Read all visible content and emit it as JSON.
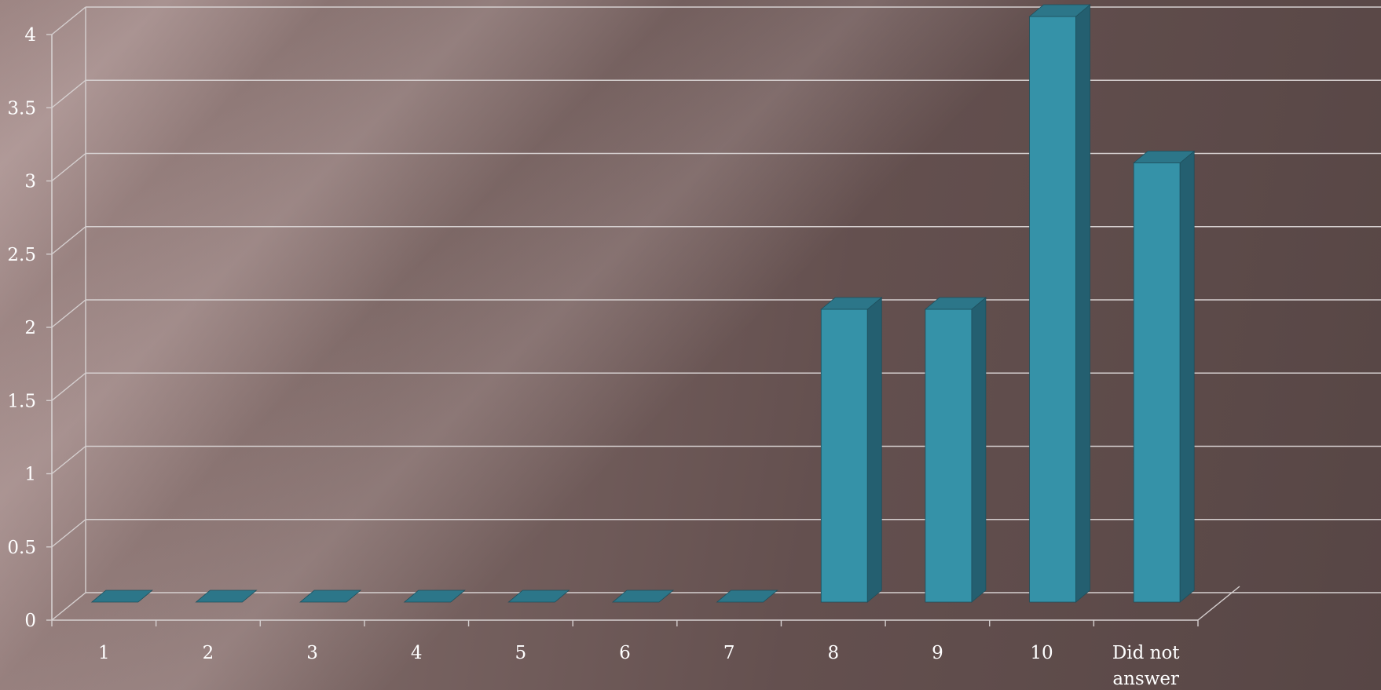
{
  "colors": {
    "bar_front": "#3592a8",
    "bar_side": "#245f70",
    "bar_top": "#2c7689",
    "gridline": "#d6d0d0",
    "text": "#ffffff"
  },
  "chart_data": {
    "type": "bar",
    "style": "3d-column",
    "categories": [
      "1",
      "2",
      "3",
      "4",
      "5",
      "6",
      "7",
      "8",
      "9",
      "10",
      "Did not answer"
    ],
    "series": [
      {
        "values": [
          0,
          0,
          0,
          0,
          0,
          0,
          0,
          2,
          2,
          4,
          3
        ]
      }
    ],
    "title": "",
    "xlabel": "",
    "ylabel": "",
    "ylim": [
      0,
      4
    ],
    "yticks": [
      "0",
      "0.5",
      "1",
      "1.5",
      "2",
      "2.5",
      "3",
      "3.5",
      "4"
    ],
    "grid": true,
    "legend": "none"
  }
}
